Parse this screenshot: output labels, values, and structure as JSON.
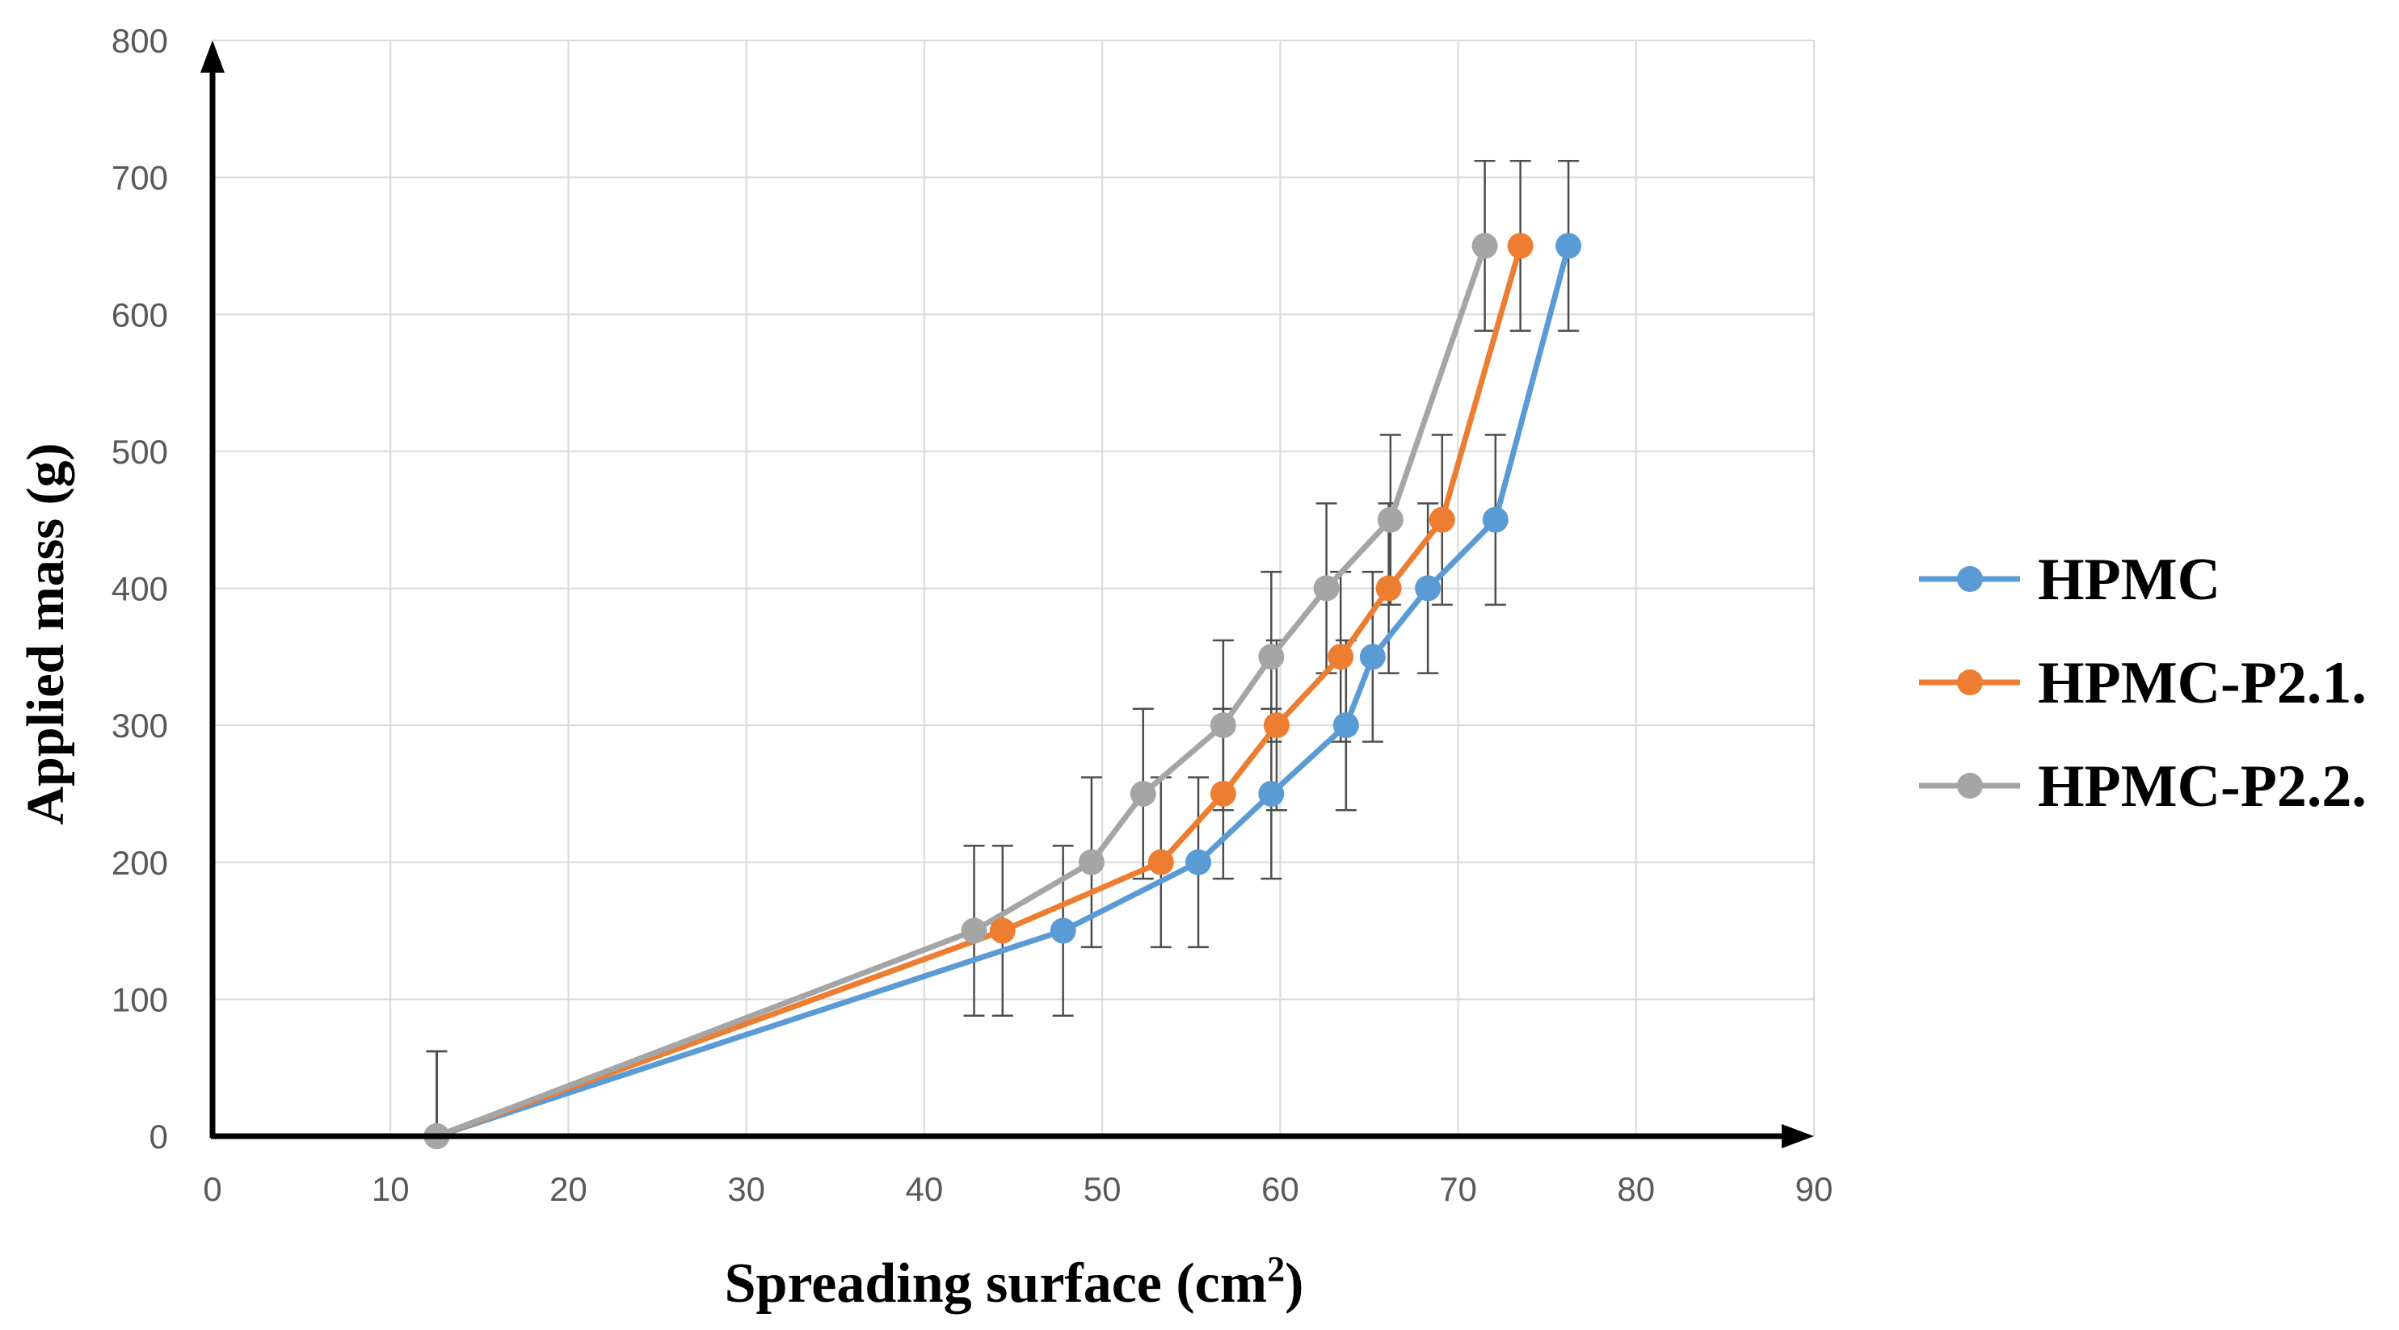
{
  "chart_data": {
    "type": "line",
    "title": "",
    "xlabel": "Spreading surface (cm",
    "xlabel_sup": "2",
    "xlabel_close": ")",
    "ylabel": "Applied mass (g)",
    "xlim": [
      0,
      90
    ],
    "ylim": [
      0,
      800
    ],
    "x_ticks": [
      "0",
      "10",
      "20",
      "30",
      "40",
      "50",
      "60",
      "70",
      "80",
      "90"
    ],
    "y_ticks": [
      "0",
      "100",
      "200",
      "300",
      "400",
      "500",
      "600",
      "700",
      "800"
    ],
    "grid": true,
    "legend_position": "right",
    "error_bar": 62,
    "series": [
      {
        "name": "HPMC",
        "color": "#5b9bd5",
        "x": [
          12.6,
          47.8,
          55.4,
          59.5,
          63.7,
          65.2,
          68.3,
          72.1,
          76.2
        ],
        "y": [
          0,
          150,
          200,
          250,
          300,
          350,
          400,
          450,
          650
        ]
      },
      {
        "name": "HPMC-P2.1.",
        "color": "#ed7d31",
        "x": [
          12.6,
          44.4,
          53.3,
          56.8,
          59.8,
          63.4,
          66.1,
          69.1,
          73.5
        ],
        "y": [
          0,
          150,
          200,
          250,
          300,
          350,
          400,
          450,
          650
        ]
      },
      {
        "name": "HPMC-P2.2.",
        "color": "#a5a5a5",
        "x": [
          12.6,
          42.8,
          49.4,
          52.3,
          56.8,
          59.5,
          62.6,
          66.2,
          71.5
        ],
        "y": [
          0,
          150,
          200,
          250,
          300,
          350,
          400,
          450,
          650
        ]
      }
    ]
  }
}
